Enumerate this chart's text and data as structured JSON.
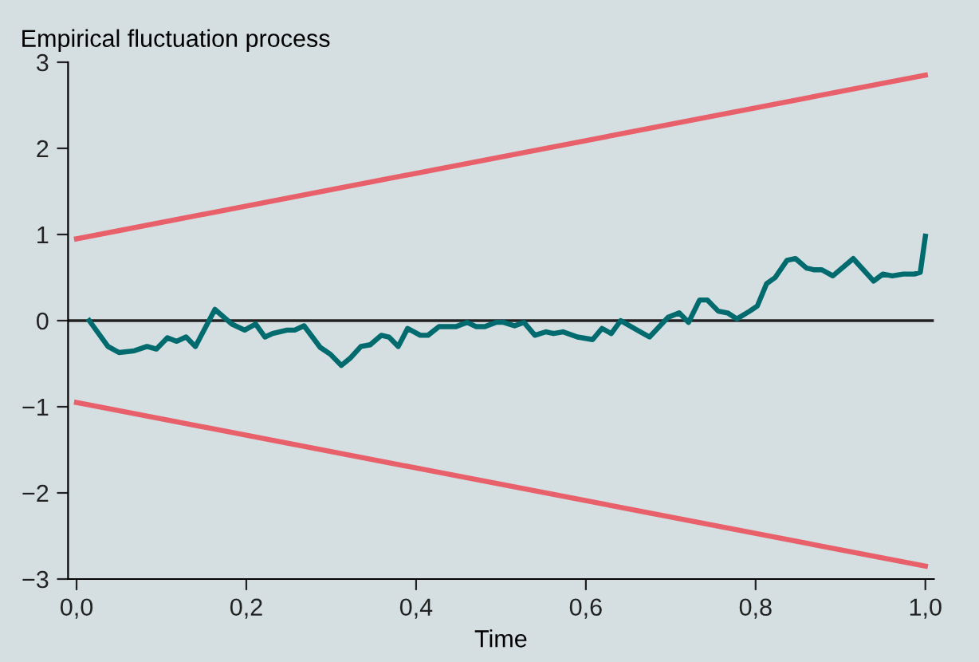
{
  "chart_data": {
    "type": "line",
    "ylabel": "Empirical fluctuation process",
    "xlabel": "Time",
    "series": [
      {
        "color": "#006b6e",
        "x": [
          0.015,
          0.037,
          0.05,
          0.068,
          0.083,
          0.094,
          0.107,
          0.118,
          0.129,
          0.14,
          0.163,
          0.183,
          0.198,
          0.211,
          0.222,
          0.231,
          0.248,
          0.257,
          0.268,
          0.287,
          0.299,
          0.312,
          0.323,
          0.335,
          0.346,
          0.359,
          0.368,
          0.379,
          0.39,
          0.405,
          0.414,
          0.427,
          0.447,
          0.46,
          0.471,
          0.481,
          0.494,
          0.503,
          0.516,
          0.527,
          0.54,
          0.553,
          0.562,
          0.573,
          0.59,
          0.608,
          0.619,
          0.63,
          0.641,
          0.664,
          0.675,
          0.697,
          0.71,
          0.721,
          0.734,
          0.743,
          0.756,
          0.767,
          0.778,
          0.793,
          0.802,
          0.813,
          0.823,
          0.837,
          0.847,
          0.86,
          0.869,
          0.878,
          0.891,
          0.915,
          0.939,
          0.95,
          0.961,
          0.974,
          0.987,
          0.994,
          1.0
        ],
        "values": [
          0,
          -0.3,
          -0.37,
          -0.35,
          -0.3,
          -0.33,
          -0.2,
          -0.24,
          -0.19,
          -0.3,
          0.13,
          -0.04,
          -0.11,
          -0.04,
          -0.19,
          -0.15,
          -0.11,
          -0.11,
          -0.06,
          -0.31,
          -0.39,
          -0.52,
          -0.43,
          -0.3,
          -0.28,
          -0.17,
          -0.19,
          -0.3,
          -0.09,
          -0.17,
          -0.17,
          -0.07,
          -0.07,
          -0.02,
          -0.07,
          -0.07,
          -0.02,
          -0.02,
          -0.06,
          -0.02,
          -0.17,
          -0.13,
          -0.15,
          -0.13,
          -0.19,
          -0.22,
          -0.09,
          -0.15,
          0.0,
          -0.13,
          -0.19,
          0.04,
          0.09,
          -0.02,
          0.24,
          0.24,
          0.11,
          0.09,
          0.02,
          0.11,
          0.17,
          0.43,
          0.5,
          0.7,
          0.72,
          0.61,
          0.59,
          0.59,
          0.52,
          0.72,
          0.46,
          0.54,
          0.52,
          0.54,
          0.54,
          0.56,
          0.98
        ]
      },
      {
        "color": "#e8606a",
        "x": [
          0,
          1.0
        ],
        "values": [
          0.95,
          2.85
        ]
      },
      {
        "color": "#e8606a",
        "x": [
          0,
          1.0
        ],
        "values": [
          -0.95,
          -2.85
        ]
      }
    ],
    "ref_lines": [
      {
        "axis": "y",
        "value": 0,
        "color": "#222222"
      }
    ],
    "xlim": [
      -0.01,
      1.01
    ],
    "ylim": [
      -3,
      3
    ],
    "xticks": [
      {
        "value": 0,
        "label": "0,0"
      },
      {
        "value": 0.2,
        "label": "0,2"
      },
      {
        "value": 0.4,
        "label": "0,4"
      },
      {
        "value": 0.6,
        "label": "0,6"
      },
      {
        "value": 0.8,
        "label": "0,8"
      },
      {
        "value": 1.0,
        "label": "1,0"
      }
    ],
    "yticks": [
      {
        "value": -3,
        "label": "−3"
      },
      {
        "value": -2,
        "label": "−2"
      },
      {
        "value": -1,
        "label": "−1"
      },
      0,
      1,
      2,
      3
    ],
    "grid": false,
    "legend": false
  }
}
